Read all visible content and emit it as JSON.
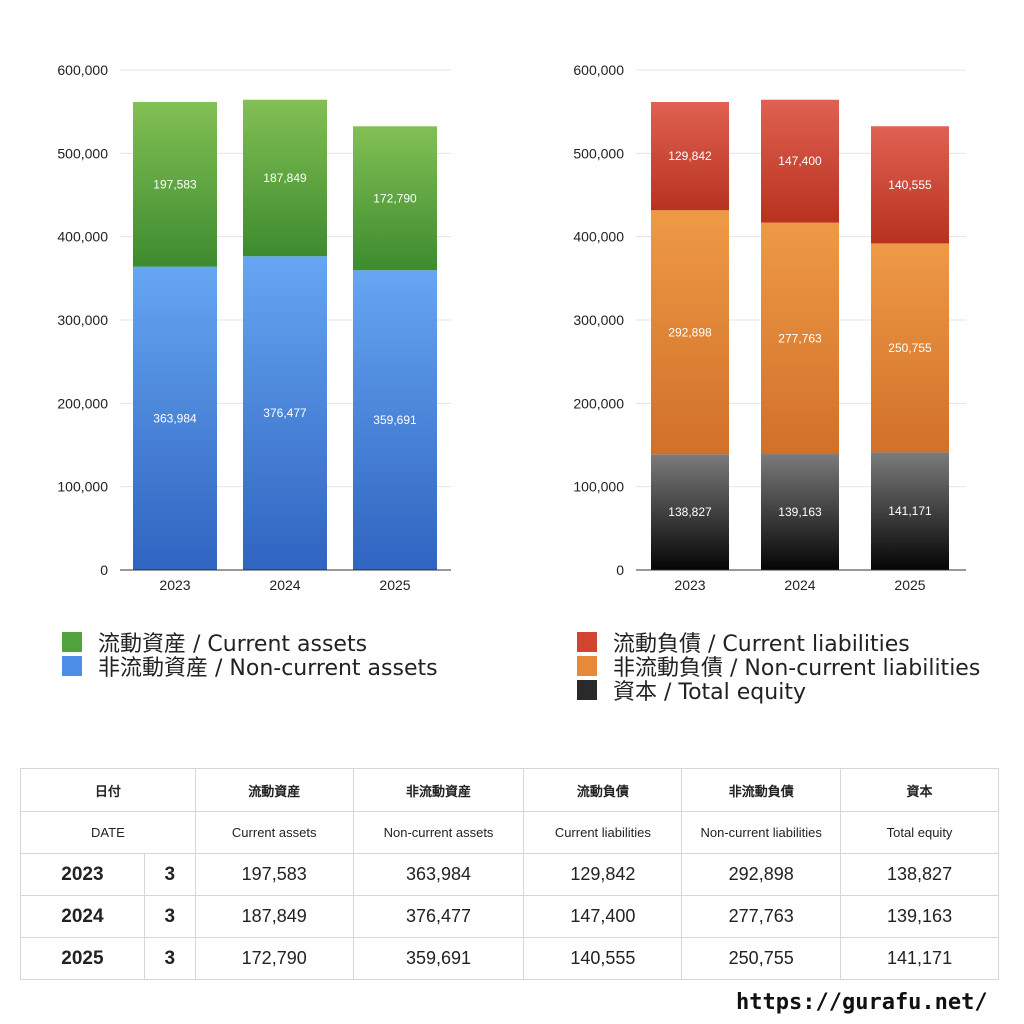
{
  "chart_data": [
    {
      "type": "bar",
      "stacked": true,
      "categories": [
        "2023",
        "2024",
        "2025"
      ],
      "ylim": [
        0,
        600000
      ],
      "yticks": [
        "0",
        "100,000",
        "200,000",
        "300,000",
        "400,000",
        "500,000",
        "600,000"
      ],
      "series": [
        {
          "name": "非流動資産 / Non-current assets",
          "values": [
            363984,
            376477,
            359691
          ],
          "labels": [
            "363,984",
            "376,477",
            "359,691"
          ],
          "color_top": "#66a6f2",
          "color_bottom": "#2f64c0"
        },
        {
          "name": "流動資産 / Current assets",
          "values": [
            197583,
            187849,
            172790
          ],
          "labels": [
            "197,583",
            "187,849",
            "172,790"
          ],
          "color_top": "#82c054",
          "color_bottom": "#3d8b2f"
        }
      ],
      "legend": [
        "流動資産 / Current assets",
        "非流動資産 / Non-current assets"
      ],
      "legend_colors": [
        "#4fa23c",
        "#4a8ee8"
      ],
      "grid": true,
      "legend_position": "bottom"
    },
    {
      "type": "bar",
      "stacked": true,
      "categories": [
        "2023",
        "2024",
        "2025"
      ],
      "ylim": [
        0,
        600000
      ],
      "yticks": [
        "0",
        "100,000",
        "200,000",
        "300,000",
        "400,000",
        "500,000",
        "600,000"
      ],
      "series": [
        {
          "name": "資本 / Total equity",
          "values": [
            138827,
            139163,
            141171
          ],
          "labels": [
            "138,827",
            "139,163",
            "141,171"
          ],
          "color_top": "#7b7b7b",
          "color_bottom": "#050505"
        },
        {
          "name": "非流動負債 / Non-current liabilities",
          "values": [
            292898,
            277763,
            250755
          ],
          "labels": [
            "292,898",
            "277,763",
            "250,755"
          ],
          "color_top": "#ee9a45",
          "color_bottom": "#d2702a"
        },
        {
          "name": "流動負債 / Current liabilities",
          "values": [
            129842,
            147400,
            140555
          ],
          "labels": [
            "129,842",
            "147,400",
            "140,555"
          ],
          "color_top": "#e06152",
          "color_bottom": "#b8321f"
        }
      ],
      "legend": [
        "流動負債 / Current liabilities",
        "非流動負債 / Non-current liabilities",
        "資本 / Total equity"
      ],
      "legend_colors": [
        "#d1442f",
        "#e8893a",
        "#2a2a2a"
      ],
      "grid": true,
      "legend_position": "bottom"
    }
  ],
  "table": {
    "header_jp": [
      "日付",
      "流動資産",
      "非流動資産",
      "流動負債",
      "非流動負債",
      "資本"
    ],
    "header_en": [
      "DATE",
      "Current assets",
      "Non-current assets",
      "Current liabilities",
      "Non-current liabilities",
      "Total equity"
    ],
    "rows": [
      {
        "year": "2023",
        "month": "3",
        "cells": [
          "197,583",
          "363,984",
          "129,842",
          "292,898",
          "138,827"
        ]
      },
      {
        "year": "2024",
        "month": "3",
        "cells": [
          "187,849",
          "376,477",
          "147,400",
          "277,763",
          "139,163"
        ]
      },
      {
        "year": "2025",
        "month": "3",
        "cells": [
          "172,790",
          "359,691",
          "140,555",
          "250,755",
          "141,171"
        ]
      }
    ]
  },
  "footer": {
    "site": "https://gurafu.net/"
  }
}
